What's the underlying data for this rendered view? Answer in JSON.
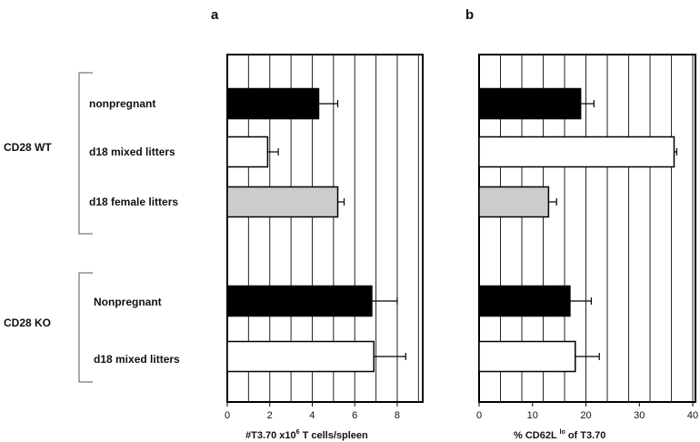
{
  "figure": {
    "groups": [
      {
        "label": "CD28 WT",
        "rows": [
          "nonpregnant",
          "d18 mixed litters",
          "d18 female litters"
        ]
      },
      {
        "label": "CD28 KO",
        "rows": [
          "Nonpregnant",
          "d18 mixed litters"
        ]
      }
    ]
  },
  "colors": {
    "black": "#000000",
    "white": "#ffffff",
    "gray": "#cccccc"
  },
  "chart_data": [
    {
      "type": "bar",
      "orientation": "horizontal",
      "panel": "a",
      "xlabel_main": "#T3.70  x10",
      "xlabel_sup": "6",
      "xlabel_tail": " T cells/spleen",
      "xlim": [
        0,
        9.2
      ],
      "xticks": [
        0,
        2,
        4,
        6,
        8
      ],
      "xtick_labels": [
        "0",
        "2",
        "4",
        "6",
        "8"
      ],
      "grid_step": 1,
      "grid": true,
      "categories": [
        "nonpregnant",
        "d18 mixed litters",
        "d18 female litters",
        "Nonpregnant",
        "d18 mixed litters"
      ],
      "values": [
        4.3,
        1.9,
        5.2,
        6.8,
        6.9
      ],
      "errors": [
        0.9,
        0.5,
        0.3,
        1.2,
        1.5
      ],
      "bar_colors": [
        "black",
        "white",
        "gray",
        "black",
        "white"
      ]
    },
    {
      "type": "bar",
      "orientation": "horizontal",
      "panel": "b",
      "xlabel_main": "% CD62L ",
      "xlabel_sup": "lo",
      "xlabel_tail": " of T3.70",
      "xlim": [
        0,
        40.5
      ],
      "xticks": [
        0,
        10,
        20,
        30,
        40
      ],
      "xtick_labels": [
        "0",
        "10",
        "20",
        "30",
        "40"
      ],
      "grid_step": 4,
      "grid": true,
      "categories": [
        "nonpregnant",
        "d18 mixed litters",
        "d18 female litters",
        "Nonpregnant",
        "d18 mixed litters"
      ],
      "values": [
        19,
        36.5,
        13,
        17,
        18
      ],
      "errors": [
        2.5,
        0.5,
        1.5,
        4,
        4.5
      ],
      "bar_colors": [
        "black",
        "white",
        "gray",
        "black",
        "white"
      ]
    }
  ]
}
